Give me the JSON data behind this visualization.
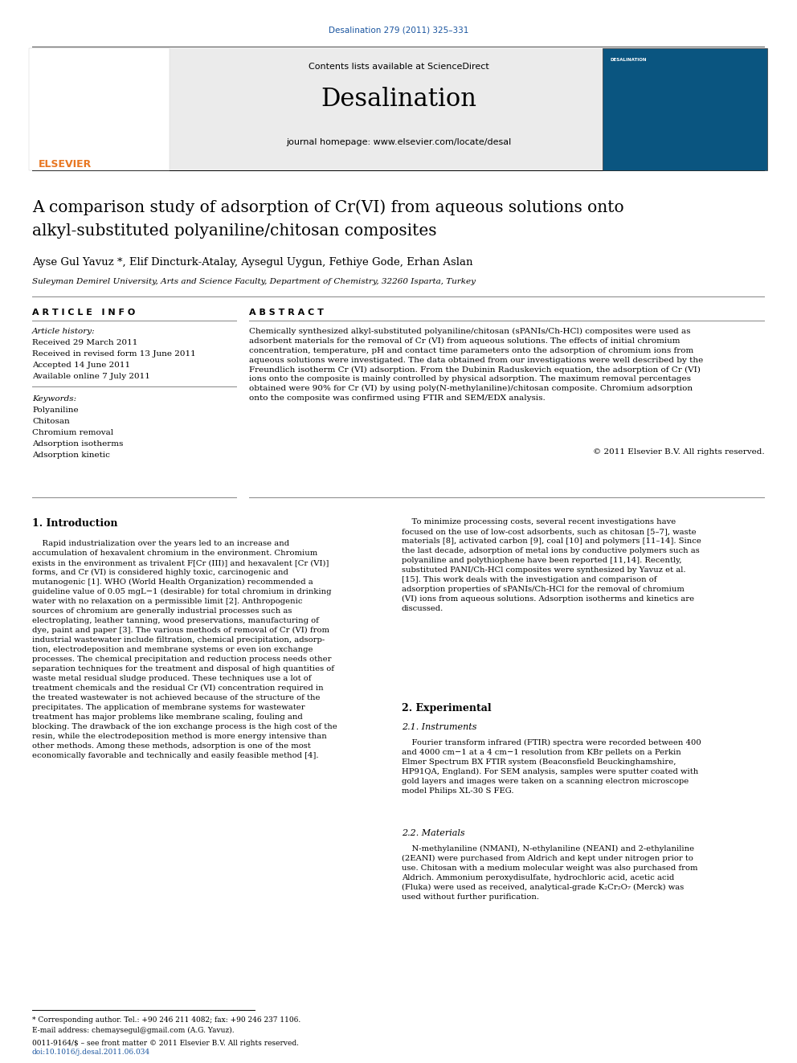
{
  "page_width": 9.92,
  "page_height": 13.23,
  "dpi": 100,
  "background_color": "#ffffff",
  "header_bg_color": "#ebebeb",
  "journal_ref_text": "Desalination 279 (2011) 325–331",
  "journal_ref_color": "#1a55a0",
  "contents_text": "Contents lists available at ",
  "sciencedirect_text": "ScienceDirect",
  "sciencedirect_color": "#1a55a0",
  "journal_name": "Desalination",
  "journal_homepage": "journal homepage: www.elsevier.com/locate/desal",
  "title_line1": "A comparison study of adsorption of Cr(VI) from aqueous solutions onto",
  "title_line2": "alkyl-substituted polyaniline/chitosan composites",
  "authors": "Ayse Gul Yavuz *, Elif Dincturk-Atalay, Aysegul Uygun, Fethiye Gode, Erhan Aslan",
  "affiliation": "Suleyman Demirel University, Arts and Science Faculty, Department of Chemistry, 32260 Isparta, Turkey",
  "article_info_header": "A R T I C L E   I N F O",
  "abstract_header": "A B S T R A C T",
  "article_history_label": "Article history:",
  "received": "Received 29 March 2011",
  "revised": "Received in revised form 13 June 2011",
  "accepted": "Accepted 14 June 2011",
  "available": "Available online 7 July 2011",
  "keywords_label": "Keywords:",
  "keywords": [
    "Polyaniline",
    "Chitosan",
    "Chromium removal",
    "Adsorption isotherms",
    "Adsorption kinetic"
  ],
  "abstract_text": "Chemically synthesized alkyl-substituted polyaniline/chitosan (sPANIs/Ch-HCl) composites were used as\nadsorbent materials for the removal of Cr (VI) from aqueous solutions. The effects of initial chromium\nconcentration, temperature, pH and contact time parameters onto the adsorption of chromium ions from\naqueous solutions were investigated. The data obtained from our investigations were well described by the\nFreundlich isotherm Cr (VI) adsorption. From the Dubinin Raduskevich equation, the adsorption of Cr (VI)\nions onto the composite is mainly controlled by physical adsorption. The maximum removal percentages\nobtained were 90% for Cr (VI) by using poly(N-methylaniline)/chitosan composite. Chromium adsorption\nonto the composite was confirmed using FTIR and SEM/EDX analysis.",
  "copyright": "© 2011 Elsevier B.V. All rights reserved.",
  "intro_header": "1. Introduction",
  "intro_text_left": "    Rapid industrialization over the years led to an increase and\naccumulation of hexavalent chromium in the environment. Chromium\nexists in the environment as trivalent F[Cr (III)] and hexavalent [Cr (VI)]\nforms, and Cr (VI) is considered highly toxic, carcinogenic and\nmutanogenic [1]. WHO (World Health Organization) recommended a\nguideline value of 0.05 mgL−1 (desirable) for total chromium in drinking\nwater with no relaxation on a permissible limit [2]. Anthropogenic\nsources of chromium are generally industrial processes such as\nelectroplating, leather tanning, wood preservations, manufacturing of\ndye, paint and paper [3]. The various methods of removal of Cr (VI) from\nindustrial wastewater include filtration, chemical precipitation, adsorp-\ntion, electrodeposition and membrane systems or even ion exchange\nprocesses. The chemical precipitation and reduction process needs other\nseparation techniques for the treatment and disposal of high quantities of\nwaste metal residual sludge produced. These techniques use a lot of\ntreatment chemicals and the residual Cr (VI) concentration required in\nthe treated wastewater is not achieved because of the structure of the\nprecipitates. The application of membrane systems for wastewater\ntreatment has major problems like membrane scaling, fouling and\nblocking. The drawback of the ion exchange process is the high cost of the\nresin, while the electrodeposition method is more energy intensive than\nother methods. Among these methods, adsorption is one of the most\neconomically favorable and technically and easily feasible method [4].",
  "intro_text_right": "    To minimize processing costs, several recent investigations have\nfocused on the use of low-cost adsorbents, such as chitosan [5–7], waste\nmaterials [8], activated carbon [9], coal [10] and polymers [11–14]. Since\nthe last decade, adsorption of metal ions by conductive polymers such as\npolyaniline and polythiophene have been reported [11,14]. Recently,\nsubstituted PANI/Ch-HCl composites were synthesized by Yavuz et al.\n[15]. This work deals with the investigation and comparison of\nadsorption properties of sPANIs/Ch-HCl for the removal of chromium\n(VI) ions from aqueous solutions. Adsorption isotherms and kinetics are\ndiscussed.",
  "exp_header": "2. Experimental",
  "exp_sub_header": "2.1. Instruments",
  "instruments_text": "    Fourier transform infrared (FTIR) spectra were recorded between 400\nand 4000 cm−1 at a 4 cm−1 resolution from KBr pellets on a Perkin\nElmer Spectrum BX FTIR system (Beaconsfield Beuckinghamshire,\nHP91QA, England). For SEM analysis, samples were sputter coated with\ngold layers and images were taken on a scanning electron microscope\nmodel Philips XL-30 S FEG.",
  "mat_sub_header": "2.2. Materials",
  "materials_text": "    N-methylaniline (NMANI), N-ethylaniline (NEANI) and 2-ethylaniline\n(2EANI) were purchased from Aldrich and kept under nitrogen prior to\nuse. Chitosan with a medium molecular weight was also purchased from\nAldrich. Ammonium peroxydisulfate, hydrochloric acid, acetic acid\n(Fluka) were used as received, analytical-grade K₂Cr₂O₇ (Merck) was\nused without further purification.",
  "footnote_text": "* Corresponding author. Tel.: +90 246 211 4082; fax: +90 246 237 1106.",
  "email_text": "E-mail address: chemaysegul@gmail.com (A.G. Yavuz).",
  "issn_text": "0011-9164/$ – see front matter © 2011 Elsevier B.V. All rights reserved.",
  "doi_text": "doi:10.1016/j.desal.2011.06.034",
  "link_color": "#1a55a0",
  "elsevier_color": "#e87722",
  "divider_color_heavy": "#1a1a1a",
  "divider_color_light": "#888888"
}
